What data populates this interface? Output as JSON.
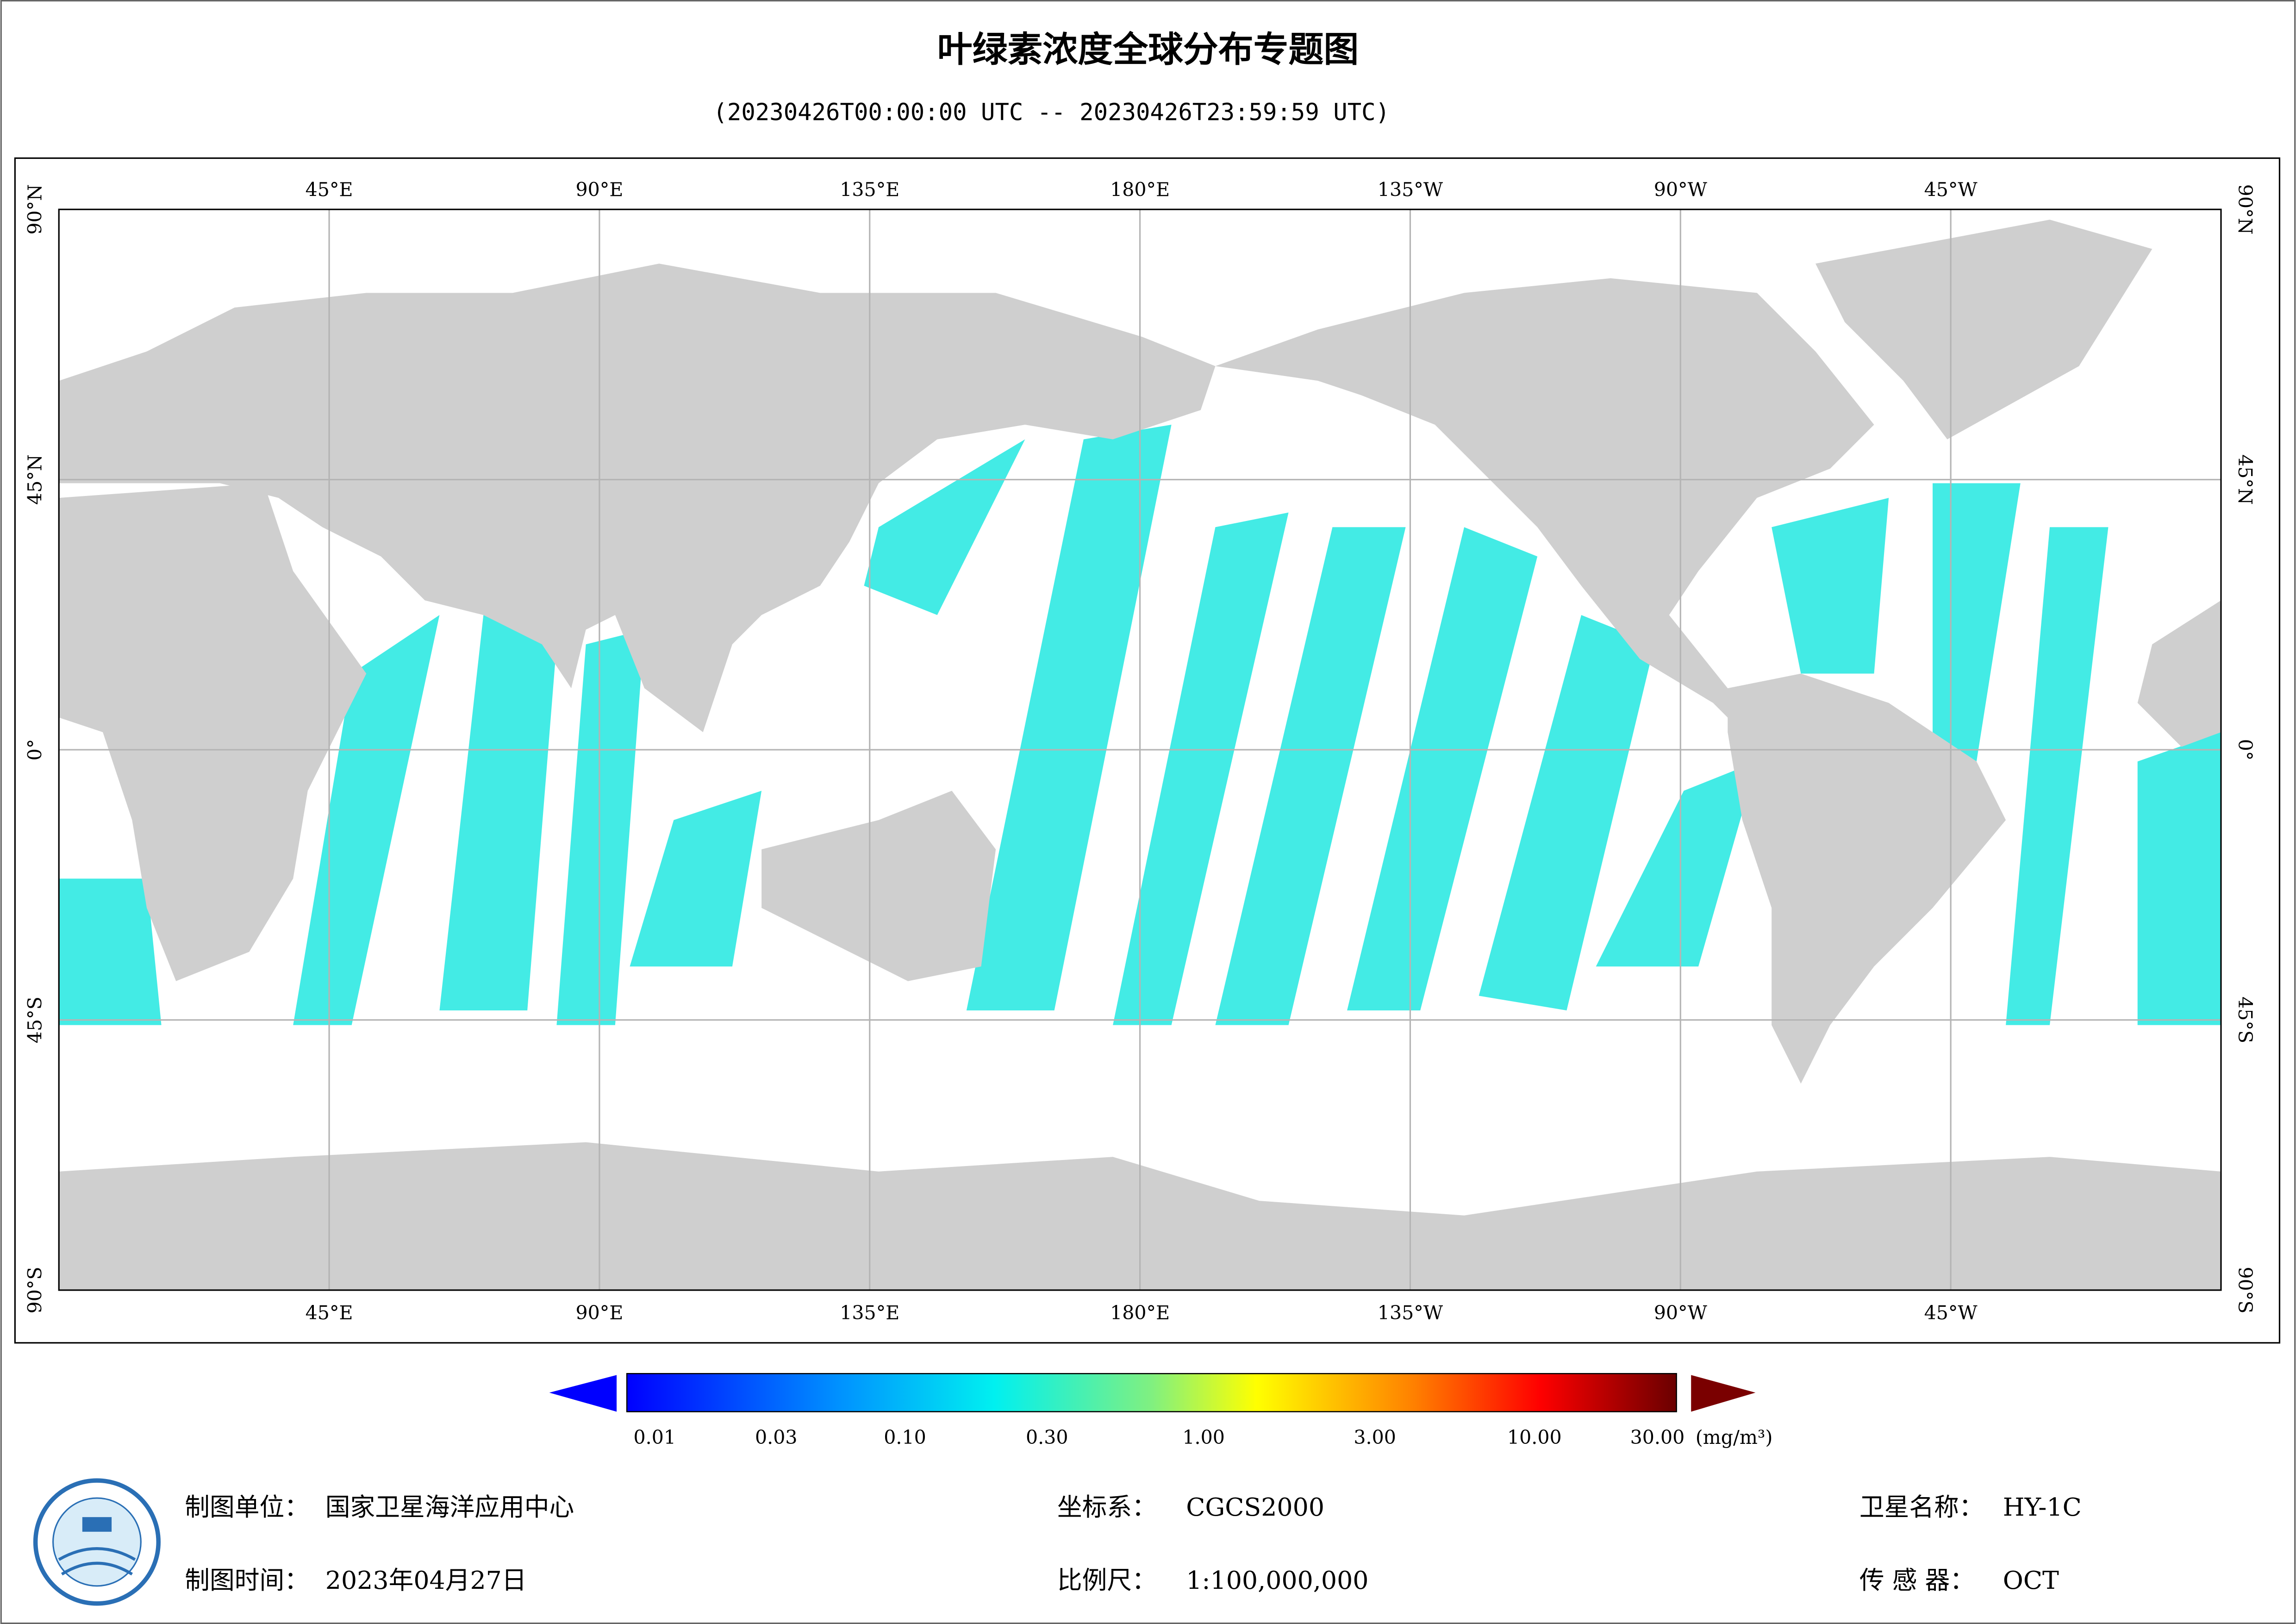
{
  "title": "叶绿素浓度全球分布专题图",
  "subtitle": "(20230426T00:00:00 UTC -- 20230426T23:59:59 UTC)",
  "map": {
    "lon_labels": [
      "45°E",
      "90°E",
      "135°E",
      "180°E",
      "135°W",
      "90°W",
      "45°W"
    ],
    "lat_labels": [
      "90°N",
      "45°N",
      "0°",
      "45°S",
      "90°S"
    ]
  },
  "colorbar": {
    "ticks": [
      "0.01",
      "0.03",
      "0.10",
      "0.30",
      "1.00",
      "3.00",
      "10.00",
      "30.00"
    ],
    "unit": "(mg/m³)"
  },
  "footer": {
    "unit_label": "制图单位：",
    "unit": "国家卫星海洋应用中心",
    "time_label": "制图时间：",
    "time": "2023年04月27日",
    "crs_label": "坐标系：",
    "crs": "CGCS2000",
    "scale_label": "比例尺：",
    "scale": "1:100,000,000",
    "sat_label": "卫星名称：",
    "sat": "HY-1C",
    "sensor_label": "传 感 器：",
    "sensor": "OCT"
  }
}
